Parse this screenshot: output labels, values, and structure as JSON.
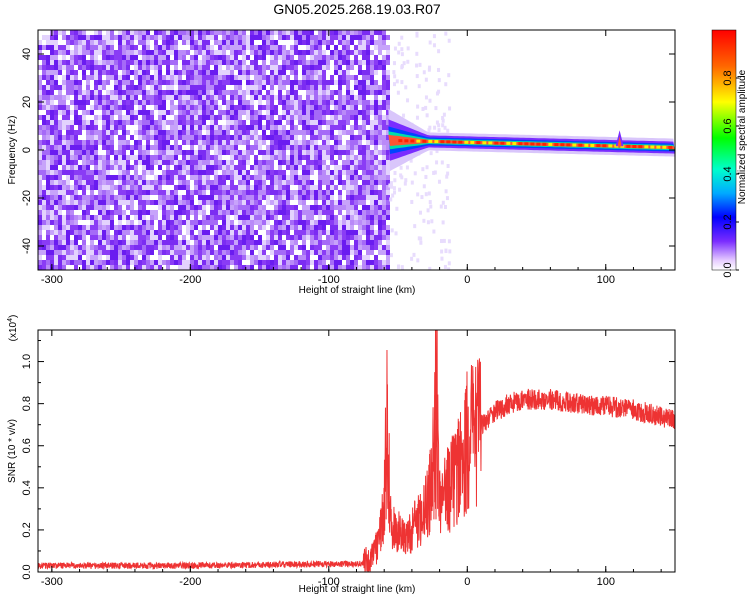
{
  "title": "GN05.2025.268.19.03.R07",
  "chart_data": [
    {
      "type": "heatmap",
      "xlabel": "Height of straight line (km)",
      "ylabel": "Frequency (Hz)",
      "xlim": [
        -310,
        150
      ],
      "ylim": [
        -50,
        50
      ],
      "x_ticks": [
        -300,
        -200,
        -100,
        0,
        100
      ],
      "x_tick_labels": [
        "-300",
        "-200",
        "-100",
        "0",
        "100"
      ],
      "y_ticks": [
        -40,
        -20,
        0,
        20,
        40
      ],
      "y_tick_labels": [
        "-40",
        "-20",
        "0",
        "20",
        "40"
      ],
      "noise_region_x": [
        -310,
        -57
      ],
      "signal_ridge": {
        "x_start": -57,
        "x_end": 150,
        "freq_center_start": 4,
        "freq_center_end": 1,
        "spike_at_x": 110
      },
      "colorbar": {
        "label": "Normalized spectral amplitude",
        "range": [
          0,
          1
        ],
        "ticks": [
          0.0,
          0.2,
          0.4,
          0.6,
          0.8
        ],
        "tick_labels": [
          "0.0",
          "0.2",
          "0.4",
          "0.6",
          "0.8"
        ]
      },
      "grid": false
    },
    {
      "type": "line",
      "xlabel": "Height of straight line (km)",
      "ylabel": "SNR (10 * v/v)",
      "y_multiplier": "(x10",
      "y_multiplier_exp": "4",
      "y_multiplier_close": ")",
      "xlim": [
        -310,
        150
      ],
      "ylim": [
        0,
        1.15
      ],
      "x_ticks": [
        -300,
        -200,
        -100,
        0,
        100
      ],
      "x_tick_labels": [
        "-300",
        "-200",
        "-100",
        "0",
        "100"
      ],
      "y_ticks": [
        0.0,
        0.2,
        0.4,
        0.6,
        0.8,
        1.0
      ],
      "y_tick_labels": [
        "0.0",
        "0.2",
        "0.4",
        "0.6",
        "0.8",
        "1.0"
      ],
      "series": [
        {
          "color": "#ee3333",
          "x": [
            -310,
            -200,
            -75,
            -70,
            -65,
            -60,
            -58,
            -55,
            -50,
            -45,
            -40,
            -35,
            -30,
            -25,
            -22,
            -20,
            -15,
            -10,
            -5,
            0,
            10,
            20,
            30,
            40,
            50,
            60,
            80,
            100,
            120,
            140,
            150
          ],
          "y": [
            0.03,
            0.03,
            0.04,
            0.05,
            0.12,
            0.3,
            0.75,
            0.2,
            0.2,
            0.15,
            0.2,
            0.25,
            0.3,
            0.45,
            1.15,
            0.35,
            0.38,
            0.45,
            0.52,
            0.62,
            0.7,
            0.76,
            0.8,
            0.82,
            0.82,
            0.82,
            0.8,
            0.79,
            0.77,
            0.74,
            0.72
          ]
        }
      ],
      "grid": false
    }
  ]
}
